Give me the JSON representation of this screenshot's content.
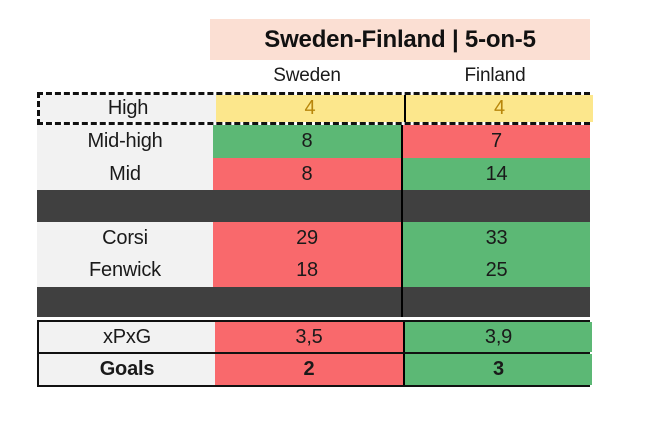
{
  "title": "Sweden-Finland | 5-on-5",
  "columns": {
    "team1": "Sweden",
    "team2": "Finland"
  },
  "rows": [
    {
      "label": "High",
      "sweden": "4",
      "finland": "4",
      "sweden_color": "yellow",
      "finland_color": "yellow",
      "highlighted": true,
      "bold": false
    },
    {
      "label": "Mid-high",
      "sweden": "8",
      "finland": "7",
      "sweden_color": "green",
      "finland_color": "red",
      "highlighted": false,
      "bold": false
    },
    {
      "label": "Mid",
      "sweden": "8",
      "finland": "14",
      "sweden_color": "red",
      "finland_color": "green",
      "highlighted": false,
      "bold": false
    },
    {
      "label": "Corsi",
      "sweden": "29",
      "finland": "33",
      "sweden_color": "red",
      "finland_color": "green",
      "highlighted": false,
      "bold": false
    },
    {
      "label": "Fenwick",
      "sweden": "18",
      "finland": "25",
      "sweden_color": "red",
      "finland_color": "green",
      "highlighted": false,
      "bold": false
    },
    {
      "label": "xPxG",
      "sweden": "3,5",
      "finland": "3,9",
      "sweden_color": "red",
      "finland_color": "green",
      "highlighted": false,
      "bold": false
    },
    {
      "label": "Goals",
      "sweden": "2",
      "finland": "3",
      "sweden_color": "red",
      "finland_color": "green",
      "highlighted": false,
      "bold": true
    }
  ],
  "colors": {
    "title_bg": "#fbdfd3",
    "tie_yellow": "#fce78c",
    "advantage_green": "#5cb875",
    "disadvantage_red": "#f9696c",
    "divider_dark": "#404040",
    "label_column_bg": "#f2f2f2",
    "tie_value_text": "#b8860b",
    "text": "#1a1a1a"
  },
  "chart_data": {
    "type": "table",
    "title": "Sweden-Finland | 5-on-5",
    "columns": [
      "Sweden",
      "Finland"
    ],
    "metrics": [
      "High",
      "Mid-high",
      "Mid",
      "Corsi",
      "Fenwick",
      "xPxG",
      "Goals"
    ],
    "series": [
      {
        "name": "Sweden",
        "values": [
          4,
          8,
          8,
          29,
          18,
          3.5,
          2
        ]
      },
      {
        "name": "Finland",
        "values": [
          4,
          7,
          14,
          33,
          25,
          3.9,
          3
        ]
      }
    ],
    "notes_visible_format": "decimal comma used for xPxG values (3,5 / 3,9); yellow = equal, green = higher value, red = lower value; dashed outline around High row"
  }
}
